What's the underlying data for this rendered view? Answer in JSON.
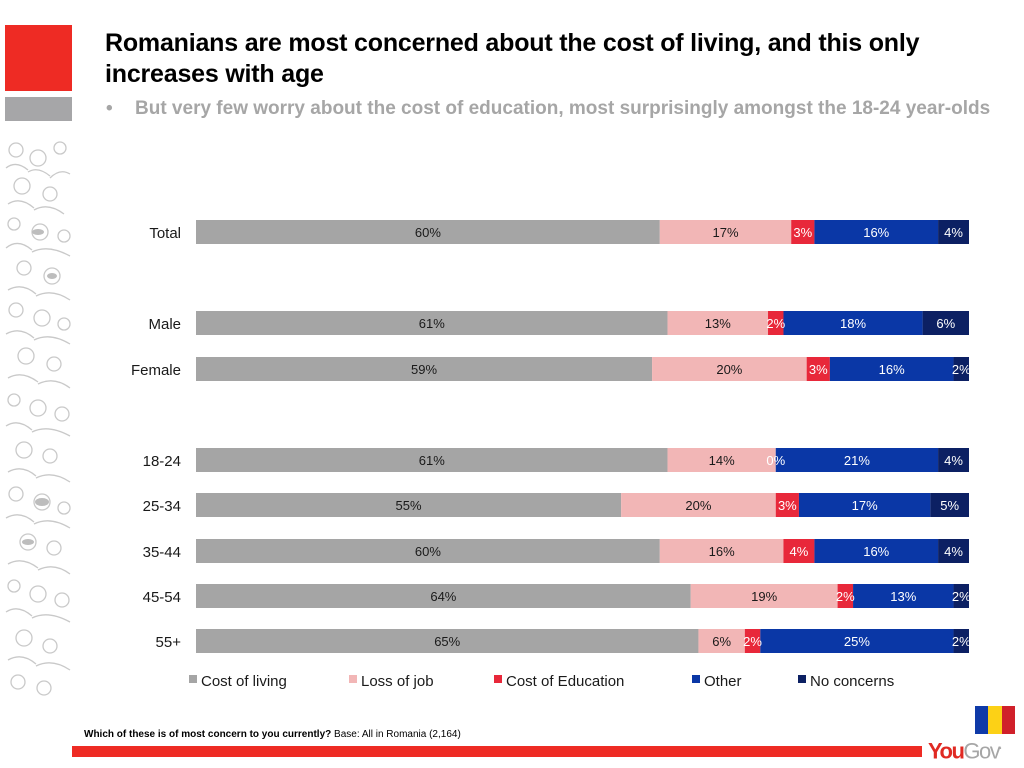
{
  "slide": {
    "title": "Romanians are most concerned about the cost of living, and this only increases with age",
    "subtitle_bullet": "•",
    "subtitle": "But very few worry about the cost of education, most surprisingly amongst the 18-24 year-olds",
    "footer_question": "Which of these is of most concern to you currently?",
    "footer_base": "Base: All in Romania (2,164)",
    "logo_you": "You",
    "logo_gov": "Gov",
    "brand_color": "#ee2b24",
    "flag_colors": [
      "#0f3aa8",
      "#fcd116",
      "#d0202a"
    ]
  },
  "chart_data": {
    "type": "bar",
    "orientation": "horizontal",
    "stacked": true,
    "title": "",
    "xlabel": "",
    "ylabel": "",
    "xlim": [
      0,
      100
    ],
    "grid": false,
    "legend_position": "bottom",
    "categories": [
      "Total",
      "Male",
      "Female",
      "18-24",
      "25-34",
      "35-44",
      "45-54",
      "55+"
    ],
    "groups": [
      [
        "Total"
      ],
      [
        "Male",
        "Female"
      ],
      [
        "18-24",
        "25-34",
        "35-44",
        "45-54",
        "55+"
      ]
    ],
    "series": [
      {
        "name": "Cost of living",
        "color": "#a5a5a5",
        "label_color": "#1a1a1a",
        "values": [
          60,
          61,
          59,
          61,
          55,
          60,
          64,
          65
        ]
      },
      {
        "name": "Loss of job",
        "color": "#f2b6b6",
        "label_color": "#1a1a1a",
        "values": [
          17,
          13,
          20,
          14,
          20,
          16,
          19,
          6
        ]
      },
      {
        "name": "Cost of Education",
        "color": "#e8283a",
        "label_color": "#ffffff",
        "values": [
          3,
          2,
          3,
          0,
          3,
          4,
          2,
          2
        ]
      },
      {
        "name": "Other",
        "color": "#0a37a6",
        "label_color": "#ffffff",
        "values": [
          16,
          18,
          16,
          21,
          17,
          16,
          13,
          25
        ]
      },
      {
        "name": "No concerns",
        "color": "#0c2063",
        "label_color": "#ffffff",
        "values": [
          4,
          6,
          2,
          4,
          5,
          4,
          2,
          2
        ]
      }
    ]
  }
}
